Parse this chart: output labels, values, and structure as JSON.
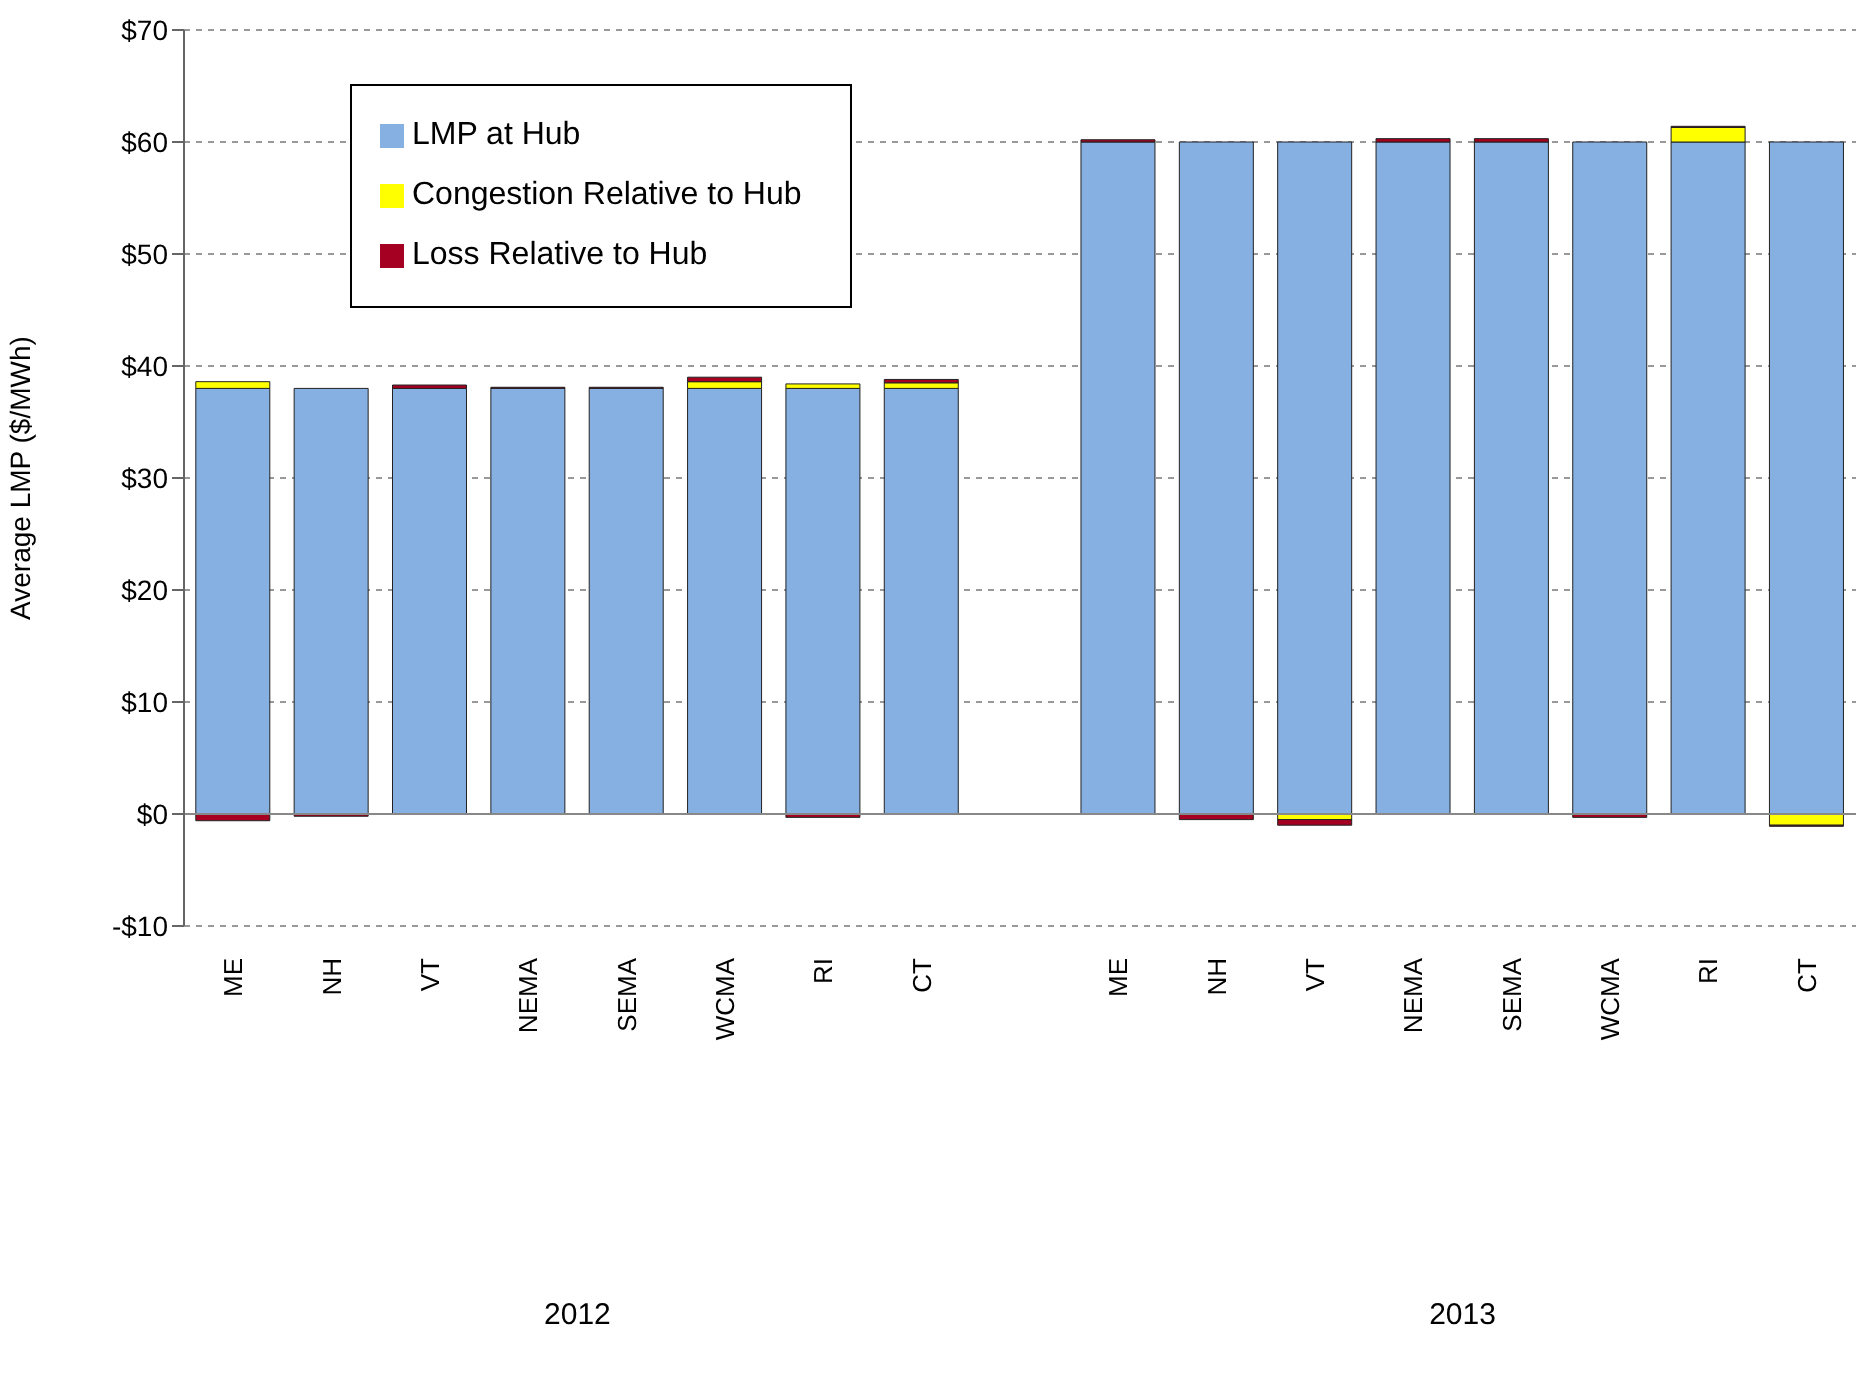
{
  "chart_data": {
    "type": "bar",
    "stacked": true,
    "ylabel": "Average LMP ($/MWh)",
    "categories": [
      "ME",
      "NH",
      "VT",
      "NEMA",
      "SEMA",
      "WCMA",
      "RI",
      "CT",
      null,
      "ME",
      "NH",
      "VT",
      "NEMA",
      "SEMA",
      "WCMA",
      "RI",
      "CT"
    ],
    "series": [
      {
        "name": "LMP at Hub",
        "color": "#86b0e2",
        "values": [
          38,
          38,
          38,
          38,
          38,
          38,
          38,
          38,
          null,
          60,
          60,
          60,
          60,
          60,
          60,
          60,
          60
        ]
      },
      {
        "name": "Congestion Relative to Hub",
        "color": "#ffff00",
        "values": [
          0.6,
          0,
          0,
          null,
          0,
          0.6,
          0.4,
          0.5,
          null,
          0,
          0,
          -0.5,
          null,
          null,
          0,
          1.3,
          -1.0
        ]
      },
      {
        "name": "Loss Relative to Hub",
        "color": "#a50021",
        "values": [
          -0.6,
          -0.2,
          0.3,
          0.1,
          0.1,
          0.4,
          -0.3,
          0.3,
          null,
          0.2,
          -0.5,
          -0.5,
          0.3,
          0.3,
          -0.3,
          0.1,
          -0.1
        ]
      }
    ],
    "ylim": [
      -10,
      70
    ],
    "yticks": [
      {
        "value": -10,
        "label": "-$10"
      },
      {
        "value": 0,
        "label": "$0"
      },
      {
        "value": 10,
        "label": "$10"
      },
      {
        "value": 20,
        "label": "$20"
      },
      {
        "value": 30,
        "label": "$30"
      },
      {
        "value": 40,
        "label": "$40"
      },
      {
        "value": 50,
        "label": "$50"
      },
      {
        "value": 60,
        "label": "$60"
      },
      {
        "value": 70,
        "label": "$70"
      }
    ],
    "annotations": [
      "2012",
      "2013"
    ],
    "grid": "y",
    "legend": "top left"
  }
}
